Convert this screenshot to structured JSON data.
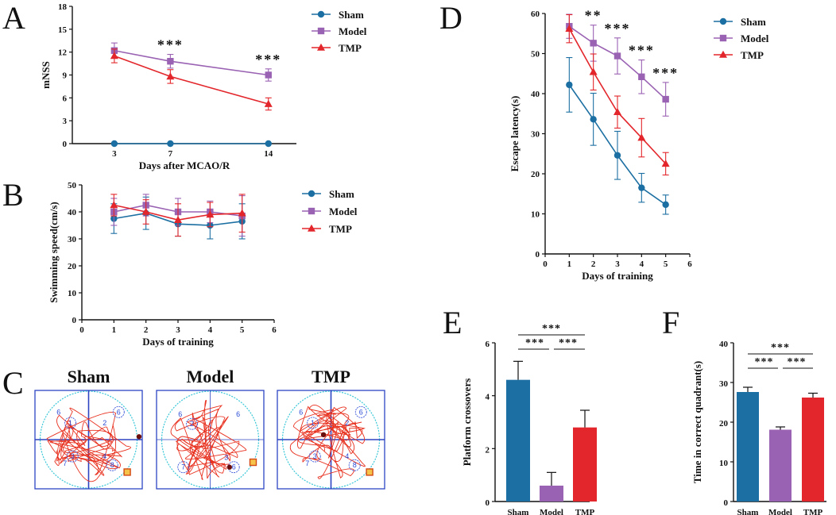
{
  "colors": {
    "sham": "#1c6fa2",
    "model": "#9a62b3",
    "tmp": "#e3262b",
    "axis": "#111111",
    "track": "#e8301e",
    "pool": "#39c7d8",
    "frame": "#2d44c2"
  },
  "legend": [
    "Sham",
    "Model",
    "TMP"
  ],
  "chart_data": [
    {
      "panel": "A",
      "type": "line",
      "xlabel": "Days after MCAO/R",
      "ylabel": "mNSS",
      "x": [
        3,
        7,
        14
      ],
      "xlim": [
        0,
        16
      ],
      "ylim": [
        0,
        18
      ],
      "yticks": [
        "0",
        "3",
        "6",
        "9",
        "12",
        "15",
        "18"
      ],
      "xticks": [
        "3",
        "7",
        "14"
      ],
      "series": [
        {
          "name": "Sham",
          "values": [
            0,
            0,
            0
          ],
          "err": [
            0,
            0,
            0
          ]
        },
        {
          "name": "Model",
          "values": [
            12.2,
            10.8,
            9.0
          ],
          "err": [
            1.0,
            0.9,
            0.8
          ]
        },
        {
          "name": "TMP",
          "values": [
            11.5,
            8.8,
            5.2
          ],
          "err": [
            0.9,
            0.9,
            0.8
          ]
        }
      ],
      "annotations": [
        {
          "x": 7,
          "text": "***"
        },
        {
          "x": 14,
          "text": "***"
        }
      ]
    },
    {
      "panel": "B",
      "type": "line",
      "xlabel": "Days of training",
      "ylabel": "Swimming speed(cm/s)",
      "x": [
        1,
        2,
        3,
        4,
        5
      ],
      "xlim": [
        0,
        6
      ],
      "ylim": [
        0,
        50
      ],
      "yticks": [
        "0",
        "10",
        "20",
        "30",
        "40",
        "50"
      ],
      "xticks": [
        "0",
        "1",
        "2",
        "3",
        "4",
        "5",
        "6"
      ],
      "series": [
        {
          "name": "Sham",
          "values": [
            37.5,
            39.5,
            35.5,
            35,
            36.5
          ],
          "err": [
            5.5,
            6,
            4.5,
            5,
            6.5
          ]
        },
        {
          "name": "Model",
          "values": [
            40,
            42.5,
            40,
            40,
            38.5
          ],
          "err": [
            5,
            4,
            5,
            4,
            7.5
          ]
        },
        {
          "name": "TMP",
          "values": [
            42.5,
            40,
            37,
            39,
            39.5
          ],
          "err": [
            4,
            4.5,
            6,
            4.5,
            7
          ]
        }
      ]
    },
    {
      "panel": "D",
      "type": "line",
      "xlabel": "Days of training",
      "ylabel": "Escape latency(s)",
      "x": [
        1,
        2,
        3,
        4,
        5
      ],
      "xlim": [
        0,
        6
      ],
      "ylim": [
        0,
        60
      ],
      "yticks": [
        "0",
        "10",
        "20",
        "30",
        "40",
        "50",
        "60"
      ],
      "xticks": [
        "0",
        "1",
        "2",
        "3",
        "4",
        "5",
        "6"
      ],
      "series": [
        {
          "name": "Sham",
          "values": [
            42.2,
            33.6,
            24.6,
            16.5,
            12.3
          ],
          "err": [
            6.8,
            6.5,
            6,
            3.6,
            2.4
          ]
        },
        {
          "name": "Model",
          "values": [
            56.8,
            52.6,
            49.4,
            44.2,
            38.6
          ],
          "err": [
            3,
            4.5,
            4.5,
            4.2,
            4.2
          ]
        },
        {
          "name": "TMP",
          "values": [
            56.2,
            45.4,
            35.4,
            29,
            22.5
          ],
          "err": [
            3.5,
            4.5,
            4,
            4.8,
            2.8
          ]
        }
      ],
      "annotations": [
        {
          "x": 2,
          "text": "**"
        },
        {
          "x": 3,
          "text": "***"
        },
        {
          "x": 4,
          "text": "***"
        },
        {
          "x": 5,
          "text": "***"
        }
      ]
    },
    {
      "panel": "E",
      "type": "bar",
      "ylabel": "Platform crossovers",
      "categories": [
        "Sham",
        "Model",
        "TMP"
      ],
      "values": [
        4.6,
        0.6,
        2.8
      ],
      "err": [
        0.7,
        0.5,
        0.65
      ],
      "ylim": [
        0,
        6
      ],
      "yticks": [
        "0",
        "2",
        "4",
        "6"
      ],
      "significance": [
        "***",
        "***",
        "***"
      ]
    },
    {
      "panel": "F",
      "type": "bar",
      "ylabel": "Time in correct quadrant(s)",
      "categories": [
        "Sham",
        "Model",
        "TMP"
      ],
      "values": [
        27.6,
        18.1,
        26.2
      ],
      "err": [
        1.2,
        0.7,
        1.1
      ],
      "ylim": [
        0,
        40
      ],
      "yticks": [
        "0",
        "10",
        "20",
        "30",
        "40"
      ],
      "significance": [
        "***",
        "***",
        "***"
      ]
    }
  ],
  "panels": {
    "A": "A",
    "B": "B",
    "C": "C",
    "D": "D",
    "E": "E",
    "F": "F"
  },
  "trackPanels": [
    {
      "title": "Sham",
      "quadrants": [
        "6",
        "1",
        "2",
        "6",
        "7",
        "3",
        "4",
        "8"
      ]
    },
    {
      "title": "Model",
      "quadrants": [
        "6",
        "2",
        "6",
        "7",
        "3",
        "6"
      ]
    },
    {
      "title": "TMP",
      "quadrants": [
        "6",
        "1",
        "2",
        "6",
        "7",
        "3",
        "4",
        "8"
      ]
    }
  ]
}
